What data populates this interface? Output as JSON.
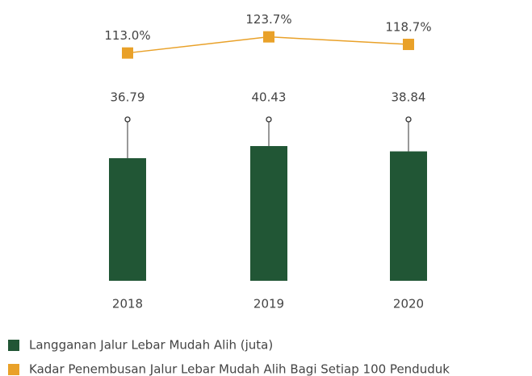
{
  "chart_data": {
    "type": "bar",
    "categories": [
      "2018",
      "2019",
      "2020"
    ],
    "series": [
      {
        "name": "Langganan Jalur Lebar Mudah Alih (juta)",
        "type": "bar",
        "color": "#215635",
        "values": [
          36.79,
          40.43,
          38.84
        ]
      },
      {
        "name": "Kadar Penembusan Jalur Lebar Mudah Alih Bagi Setiap 100 Penduduk",
        "type": "line",
        "color": "#e9a129",
        "values": [
          113.0,
          123.7,
          118.7
        ],
        "value_labels": [
          "113.0%",
          "123.7%",
          "118.7%"
        ]
      }
    ]
  }
}
